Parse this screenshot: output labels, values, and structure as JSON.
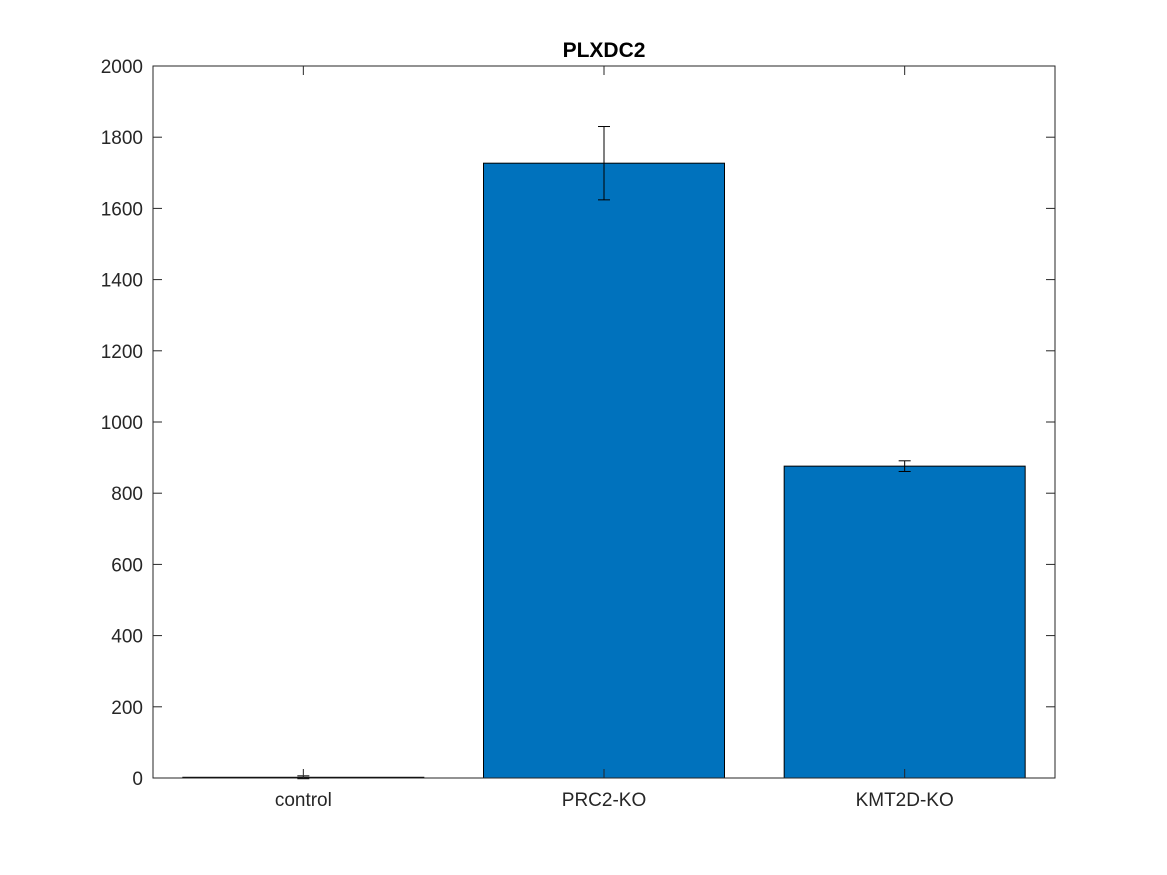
{
  "chart_data": {
    "type": "bar",
    "title": "PLXDC2",
    "xlabel": "",
    "ylabel": "",
    "categories": [
      "control",
      "PRC2-KO",
      "KMT2D-KO"
    ],
    "values": [
      2,
      1727,
      876
    ],
    "errors": [
      4,
      103,
      15
    ],
    "ylim": [
      0,
      2000
    ],
    "yticks": [
      "0",
      "200",
      "400",
      "600",
      "800",
      "1000",
      "1200",
      "1400",
      "1600",
      "1800",
      "2000"
    ],
    "bar_color": "#0072BD",
    "grid": false,
    "legend": "none"
  }
}
